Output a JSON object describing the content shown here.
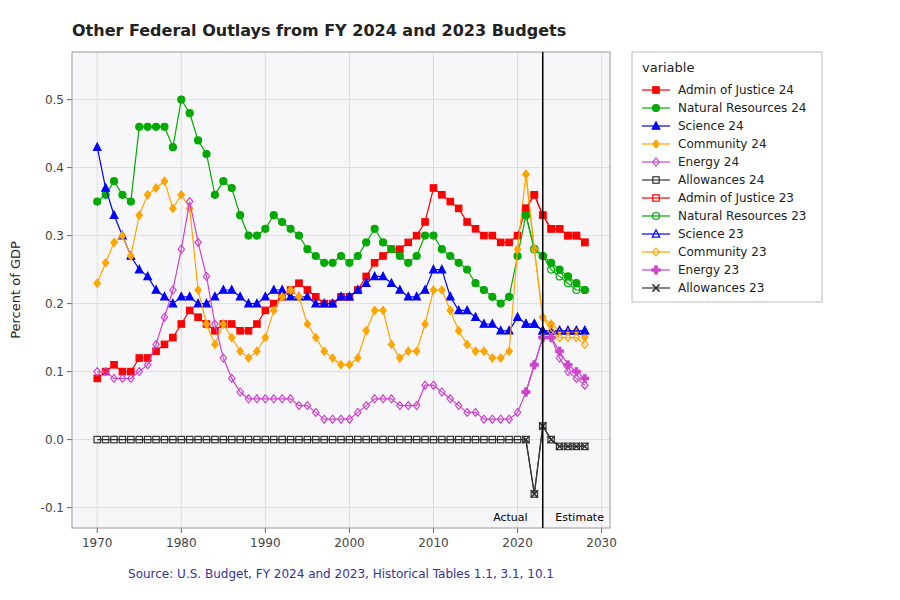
{
  "chart_data": {
    "type": "line",
    "title": "Other Federal Outlays from FY 2024 and 2023 Budgets",
    "xlabel": "Source: U.S. Budget, FY 2024 and 2023, Historical Tables 1.1, 3.1, 10.1",
    "ylabel": "Percent of GDP",
    "xlim": [
      1967,
      2031
    ],
    "xticks": [
      1970,
      1980,
      1990,
      2000,
      2010,
      2020,
      2030
    ],
    "ylim": [
      -0.13,
      0.57
    ],
    "yticks": [
      -0.1,
      {
        "value": 0,
        "label": "0.0"
      },
      0.1,
      0.2,
      0.3,
      0.4,
      0.5
    ],
    "grid": true,
    "legend": "right",
    "legend_title": "variable",
    "vertical_line": 2023,
    "annotations": [
      {
        "text": "Actual",
        "x": 2021.2,
        "y": -0.105
      },
      {
        "text": "Estimate",
        "x": 2024.5,
        "y": -0.105
      }
    ],
    "series": [
      {
        "name": "Admin of Justice 24",
        "color": "#FF0000",
        "marker": "square",
        "x": [
          1970,
          1971,
          1972,
          1973,
          1974,
          1975,
          1976,
          1977,
          1978,
          1979,
          1980,
          1981,
          1982,
          1983,
          1984,
          1985,
          1986,
          1987,
          1988,
          1989,
          1990,
          1991,
          1992,
          1993,
          1994,
          1995,
          1996,
          1997,
          1998,
          1999,
          2000,
          2001,
          2002,
          2003,
          2004,
          2005,
          2006,
          2007,
          2008,
          2009,
          2010,
          2011,
          2012,
          2013,
          2014,
          2015,
          2016,
          2017,
          2018,
          2019,
          2020,
          2021,
          2022,
          2023,
          2024,
          2025,
          2026,
          2027,
          2028
        ],
        "values": [
          0.09,
          0.1,
          0.11,
          0.1,
          0.1,
          0.12,
          0.12,
          0.13,
          0.14,
          0.15,
          0.17,
          0.19,
          0.18,
          0.17,
          0.16,
          0.17,
          0.17,
          0.16,
          0.16,
          0.17,
          0.19,
          0.2,
          0.21,
          0.22,
          0.23,
          0.22,
          0.21,
          0.2,
          0.2,
          0.21,
          0.21,
          0.22,
          0.24,
          0.26,
          0.27,
          0.28,
          0.28,
          0.29,
          0.3,
          0.32,
          0.37,
          0.36,
          0.35,
          0.34,
          0.32,
          0.31,
          0.3,
          0.3,
          0.29,
          0.29,
          0.3,
          0.34,
          0.36,
          0.33,
          0.31,
          0.31,
          0.3,
          0.3,
          0.29
        ]
      },
      {
        "name": "Natural Resources 24",
        "color": "#00AA00",
        "marker": "circle",
        "x": [
          1970,
          1971,
          1972,
          1973,
          1974,
          1975,
          1976,
          1977,
          1978,
          1979,
          1980,
          1981,
          1982,
          1983,
          1984,
          1985,
          1986,
          1987,
          1988,
          1989,
          1990,
          1991,
          1992,
          1993,
          1994,
          1995,
          1996,
          1997,
          1998,
          1999,
          2000,
          2001,
          2002,
          2003,
          2004,
          2005,
          2006,
          2007,
          2008,
          2009,
          2010,
          2011,
          2012,
          2013,
          2014,
          2015,
          2016,
          2017,
          2018,
          2019,
          2020,
          2021,
          2022,
          2023,
          2024,
          2025,
          2026,
          2027,
          2028
        ],
        "values": [
          0.35,
          0.36,
          0.38,
          0.36,
          0.35,
          0.46,
          0.46,
          0.46,
          0.46,
          0.43,
          0.5,
          0.48,
          0.44,
          0.42,
          0.36,
          0.38,
          0.37,
          0.33,
          0.3,
          0.3,
          0.31,
          0.33,
          0.32,
          0.31,
          0.3,
          0.28,
          0.27,
          0.26,
          0.26,
          0.27,
          0.26,
          0.27,
          0.29,
          0.31,
          0.29,
          0.28,
          0.27,
          0.26,
          0.27,
          0.3,
          0.3,
          0.28,
          0.27,
          0.26,
          0.25,
          0.23,
          0.22,
          0.21,
          0.2,
          0.21,
          0.27,
          0.33,
          0.28,
          0.27,
          0.26,
          0.25,
          0.24,
          0.23,
          0.22
        ]
      },
      {
        "name": "Science 24",
        "color": "#0000FF",
        "marker": "triangle-up",
        "x": [
          1970,
          1971,
          1972,
          1973,
          1974,
          1975,
          1976,
          1977,
          1978,
          1979,
          1980,
          1981,
          1982,
          1983,
          1984,
          1985,
          1986,
          1987,
          1988,
          1989,
          1990,
          1991,
          1992,
          1993,
          1994,
          1995,
          1996,
          1997,
          1998,
          1999,
          2000,
          2001,
          2002,
          2003,
          2004,
          2005,
          2006,
          2007,
          2008,
          2009,
          2010,
          2011,
          2012,
          2013,
          2014,
          2015,
          2016,
          2017,
          2018,
          2019,
          2020,
          2021,
          2022,
          2023,
          2024,
          2025,
          2026,
          2027,
          2028
        ],
        "values": [
          0.43,
          0.37,
          0.33,
          0.3,
          0.27,
          0.25,
          0.24,
          0.22,
          0.21,
          0.2,
          0.21,
          0.21,
          0.2,
          0.2,
          0.21,
          0.22,
          0.22,
          0.21,
          0.2,
          0.2,
          0.21,
          0.22,
          0.22,
          0.21,
          0.21,
          0.21,
          0.2,
          0.2,
          0.2,
          0.21,
          0.21,
          0.22,
          0.23,
          0.24,
          0.24,
          0.23,
          0.22,
          0.21,
          0.21,
          0.22,
          0.25,
          0.25,
          0.21,
          0.19,
          0.19,
          0.18,
          0.17,
          0.17,
          0.16,
          0.16,
          0.18,
          0.17,
          0.17,
          0.16,
          0.16,
          0.16,
          0.16,
          0.16,
          0.16
        ]
      },
      {
        "name": "Community 24",
        "color": "#FFA500",
        "marker": "diamond",
        "x": [
          1970,
          1971,
          1972,
          1973,
          1974,
          1975,
          1976,
          1977,
          1978,
          1979,
          1980,
          1981,
          1982,
          1983,
          1984,
          1985,
          1986,
          1987,
          1988,
          1989,
          1990,
          1991,
          1992,
          1993,
          1994,
          1995,
          1996,
          1997,
          1998,
          1999,
          2000,
          2001,
          2002,
          2003,
          2004,
          2005,
          2006,
          2007,
          2008,
          2009,
          2010,
          2011,
          2012,
          2013,
          2014,
          2015,
          2016,
          2017,
          2018,
          2019,
          2020,
          2021,
          2022,
          2023,
          2024,
          2025,
          2026,
          2027,
          2028
        ],
        "values": [
          0.23,
          0.26,
          0.29,
          0.3,
          0.27,
          0.33,
          0.36,
          0.37,
          0.38,
          0.34,
          0.36,
          0.34,
          0.22,
          0.17,
          0.14,
          0.17,
          0.15,
          0.13,
          0.12,
          0.13,
          0.15,
          0.19,
          0.21,
          0.22,
          0.21,
          0.17,
          0.15,
          0.13,
          0.12,
          0.11,
          0.11,
          0.12,
          0.16,
          0.19,
          0.19,
          0.14,
          0.12,
          0.13,
          0.13,
          0.17,
          0.22,
          0.22,
          0.19,
          0.16,
          0.14,
          0.13,
          0.13,
          0.12,
          0.12,
          0.13,
          0.28,
          0.39,
          0.28,
          0.18,
          0.17,
          0.16,
          0.16,
          0.16,
          0.15
        ]
      },
      {
        "name": "Energy 24",
        "color": "#CC44CC",
        "marker": "diamond-open",
        "x": [
          1970,
          1971,
          1972,
          1973,
          1974,
          1975,
          1976,
          1977,
          1978,
          1979,
          1980,
          1981,
          1982,
          1983,
          1984,
          1985,
          1986,
          1987,
          1988,
          1989,
          1990,
          1991,
          1992,
          1993,
          1994,
          1995,
          1996,
          1997,
          1998,
          1999,
          2000,
          2001,
          2002,
          2003,
          2004,
          2005,
          2006,
          2007,
          2008,
          2009,
          2010,
          2011,
          2012,
          2013,
          2014,
          2015,
          2016,
          2017,
          2018,
          2019,
          2020,
          2021,
          2022,
          2023,
          2024,
          2025,
          2026,
          2027,
          2028
        ],
        "values": [
          0.1,
          0.1,
          0.09,
          0.09,
          0.09,
          0.1,
          0.11,
          0.14,
          0.18,
          0.22,
          0.28,
          0.35,
          0.29,
          0.24,
          0.17,
          0.12,
          0.09,
          0.07,
          0.06,
          0.06,
          0.06,
          0.06,
          0.06,
          0.06,
          0.05,
          0.05,
          0.04,
          0.03,
          0.03,
          0.03,
          0.03,
          0.04,
          0.05,
          0.06,
          0.06,
          0.06,
          0.05,
          0.05,
          0.05,
          0.08,
          0.08,
          0.07,
          0.06,
          0.05,
          0.04,
          0.04,
          0.03,
          0.03,
          0.03,
          0.03,
          0.04,
          0.07,
          0.11,
          0.15,
          0.15,
          0.12,
          0.1,
          0.09,
          0.08
        ]
      },
      {
        "name": "Allowances 24",
        "color": "#333333",
        "marker": "square-open",
        "x": [
          1970,
          1971,
          1972,
          1973,
          1974,
          1975,
          1976,
          1977,
          1978,
          1979,
          1980,
          1981,
          1982,
          1983,
          1984,
          1985,
          1986,
          1987,
          1988,
          1989,
          1990,
          1991,
          1992,
          1993,
          1994,
          1995,
          1996,
          1997,
          1998,
          1999,
          2000,
          2001,
          2002,
          2003,
          2004,
          2005,
          2006,
          2007,
          2008,
          2009,
          2010,
          2011,
          2012,
          2013,
          2014,
          2015,
          2016,
          2017,
          2018,
          2019,
          2020,
          2021,
          2022,
          2023,
          2024,
          2025,
          2026,
          2027,
          2028
        ],
        "values": [
          0.0,
          0.0,
          0.0,
          0.0,
          0.0,
          0.0,
          0.0,
          0.0,
          0.0,
          0.0,
          0.0,
          0.0,
          0.0,
          0.0,
          0.0,
          0.0,
          0.0,
          0.0,
          0.0,
          0.0,
          0.0,
          0.0,
          0.0,
          0.0,
          0.0,
          0.0,
          0.0,
          0.0,
          0.0,
          0.0,
          0.0,
          0.0,
          0.0,
          0.0,
          0.0,
          0.0,
          0.0,
          0.0,
          0.0,
          0.0,
          0.0,
          0.0,
          0.0,
          0.0,
          0.0,
          0.0,
          0.0,
          0.0,
          0.0,
          0.0,
          0.0,
          0.0,
          -0.08,
          0.02,
          0.0,
          -0.01,
          -0.01,
          -0.01,
          -0.01
        ]
      },
      {
        "name": "Admin of Justice 23",
        "color": "#FF0000",
        "marker": "square-open",
        "x": [
          2021,
          2022,
          2023,
          2024,
          2025,
          2026,
          2027,
          2028
        ],
        "values": [
          0.34,
          0.36,
          0.33,
          0.31,
          0.31,
          0.3,
          0.3,
          0.29
        ]
      },
      {
        "name": "Natural Resources 23",
        "color": "#00AA00",
        "marker": "circle-open",
        "x": [
          2021,
          2022,
          2023,
          2024,
          2025,
          2026,
          2027,
          2028
        ],
        "values": [
          0.33,
          0.28,
          0.27,
          0.25,
          0.24,
          0.23,
          0.22,
          0.22
        ]
      },
      {
        "name": "Science 23",
        "color": "#0000FF",
        "marker": "triangle-up-open",
        "x": [
          2021,
          2022,
          2023,
          2024,
          2025,
          2026,
          2027,
          2028
        ],
        "values": [
          0.17,
          0.17,
          0.16,
          0.16,
          0.16,
          0.16,
          0.16,
          0.16
        ]
      },
      {
        "name": "Community 23",
        "color": "#FFA500",
        "marker": "diamond-open",
        "x": [
          2021,
          2022,
          2023,
          2024,
          2025,
          2026,
          2027,
          2028
        ],
        "values": [
          0.39,
          0.28,
          0.18,
          0.16,
          0.15,
          0.15,
          0.15,
          0.14
        ]
      },
      {
        "name": "Energy 23",
        "color": "#CC44CC",
        "marker": "plus-filled",
        "x": [
          2021,
          2022,
          2023,
          2024,
          2025,
          2026,
          2027,
          2028
        ],
        "values": [
          0.07,
          0.11,
          0.15,
          0.15,
          0.13,
          0.11,
          0.1,
          0.09
        ]
      },
      {
        "name": "Allowances 23",
        "color": "#333333",
        "marker": "x",
        "x": [
          2021,
          2022,
          2023,
          2024,
          2025,
          2026,
          2027,
          2028
        ],
        "values": [
          0.0,
          -0.08,
          0.02,
          0.0,
          -0.01,
          -0.01,
          -0.01,
          -0.01
        ]
      }
    ]
  }
}
